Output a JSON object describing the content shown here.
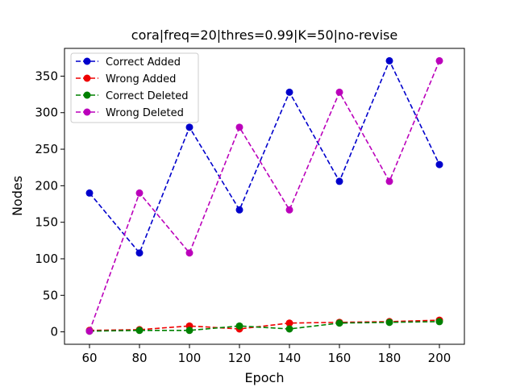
{
  "chart_data": {
    "type": "line",
    "title": "cora|freq=20|thres=0.99|K=50|no-revise",
    "xlabel": "Epoch",
    "ylabel": "Nodes",
    "x": [
      60,
      80,
      100,
      120,
      140,
      160,
      180,
      200
    ],
    "xlim": [
      50,
      210
    ],
    "ylim": [
      -17,
      388
    ],
    "xticks": [
      60,
      80,
      100,
      120,
      140,
      160,
      180,
      200
    ],
    "yticks": [
      0,
      50,
      100,
      150,
      200,
      250,
      300,
      350
    ],
    "grid": false,
    "legend_position": "top-left",
    "series": [
      {
        "name": "Correct Added",
        "color": "#0000cc",
        "line_style": "dashed",
        "marker": "circle",
        "values": [
          190,
          108,
          280,
          167,
          328,
          206,
          371,
          229
        ]
      },
      {
        "name": "Wrong Added",
        "color": "#ee0000",
        "line_style": "dashed",
        "marker": "circle",
        "values": [
          2,
          3,
          8,
          4,
          12,
          13,
          14,
          16
        ]
      },
      {
        "name": "Correct Deleted",
        "color": "#008000",
        "line_style": "dashed",
        "marker": "circle",
        "values": [
          1,
          2,
          2,
          8,
          4,
          12,
          13,
          14
        ]
      },
      {
        "name": "Wrong Deleted",
        "color": "#bb00bb",
        "line_style": "dashed",
        "marker": "circle",
        "values": [
          1,
          190,
          108,
          280,
          167,
          328,
          206,
          371
        ]
      }
    ]
  }
}
